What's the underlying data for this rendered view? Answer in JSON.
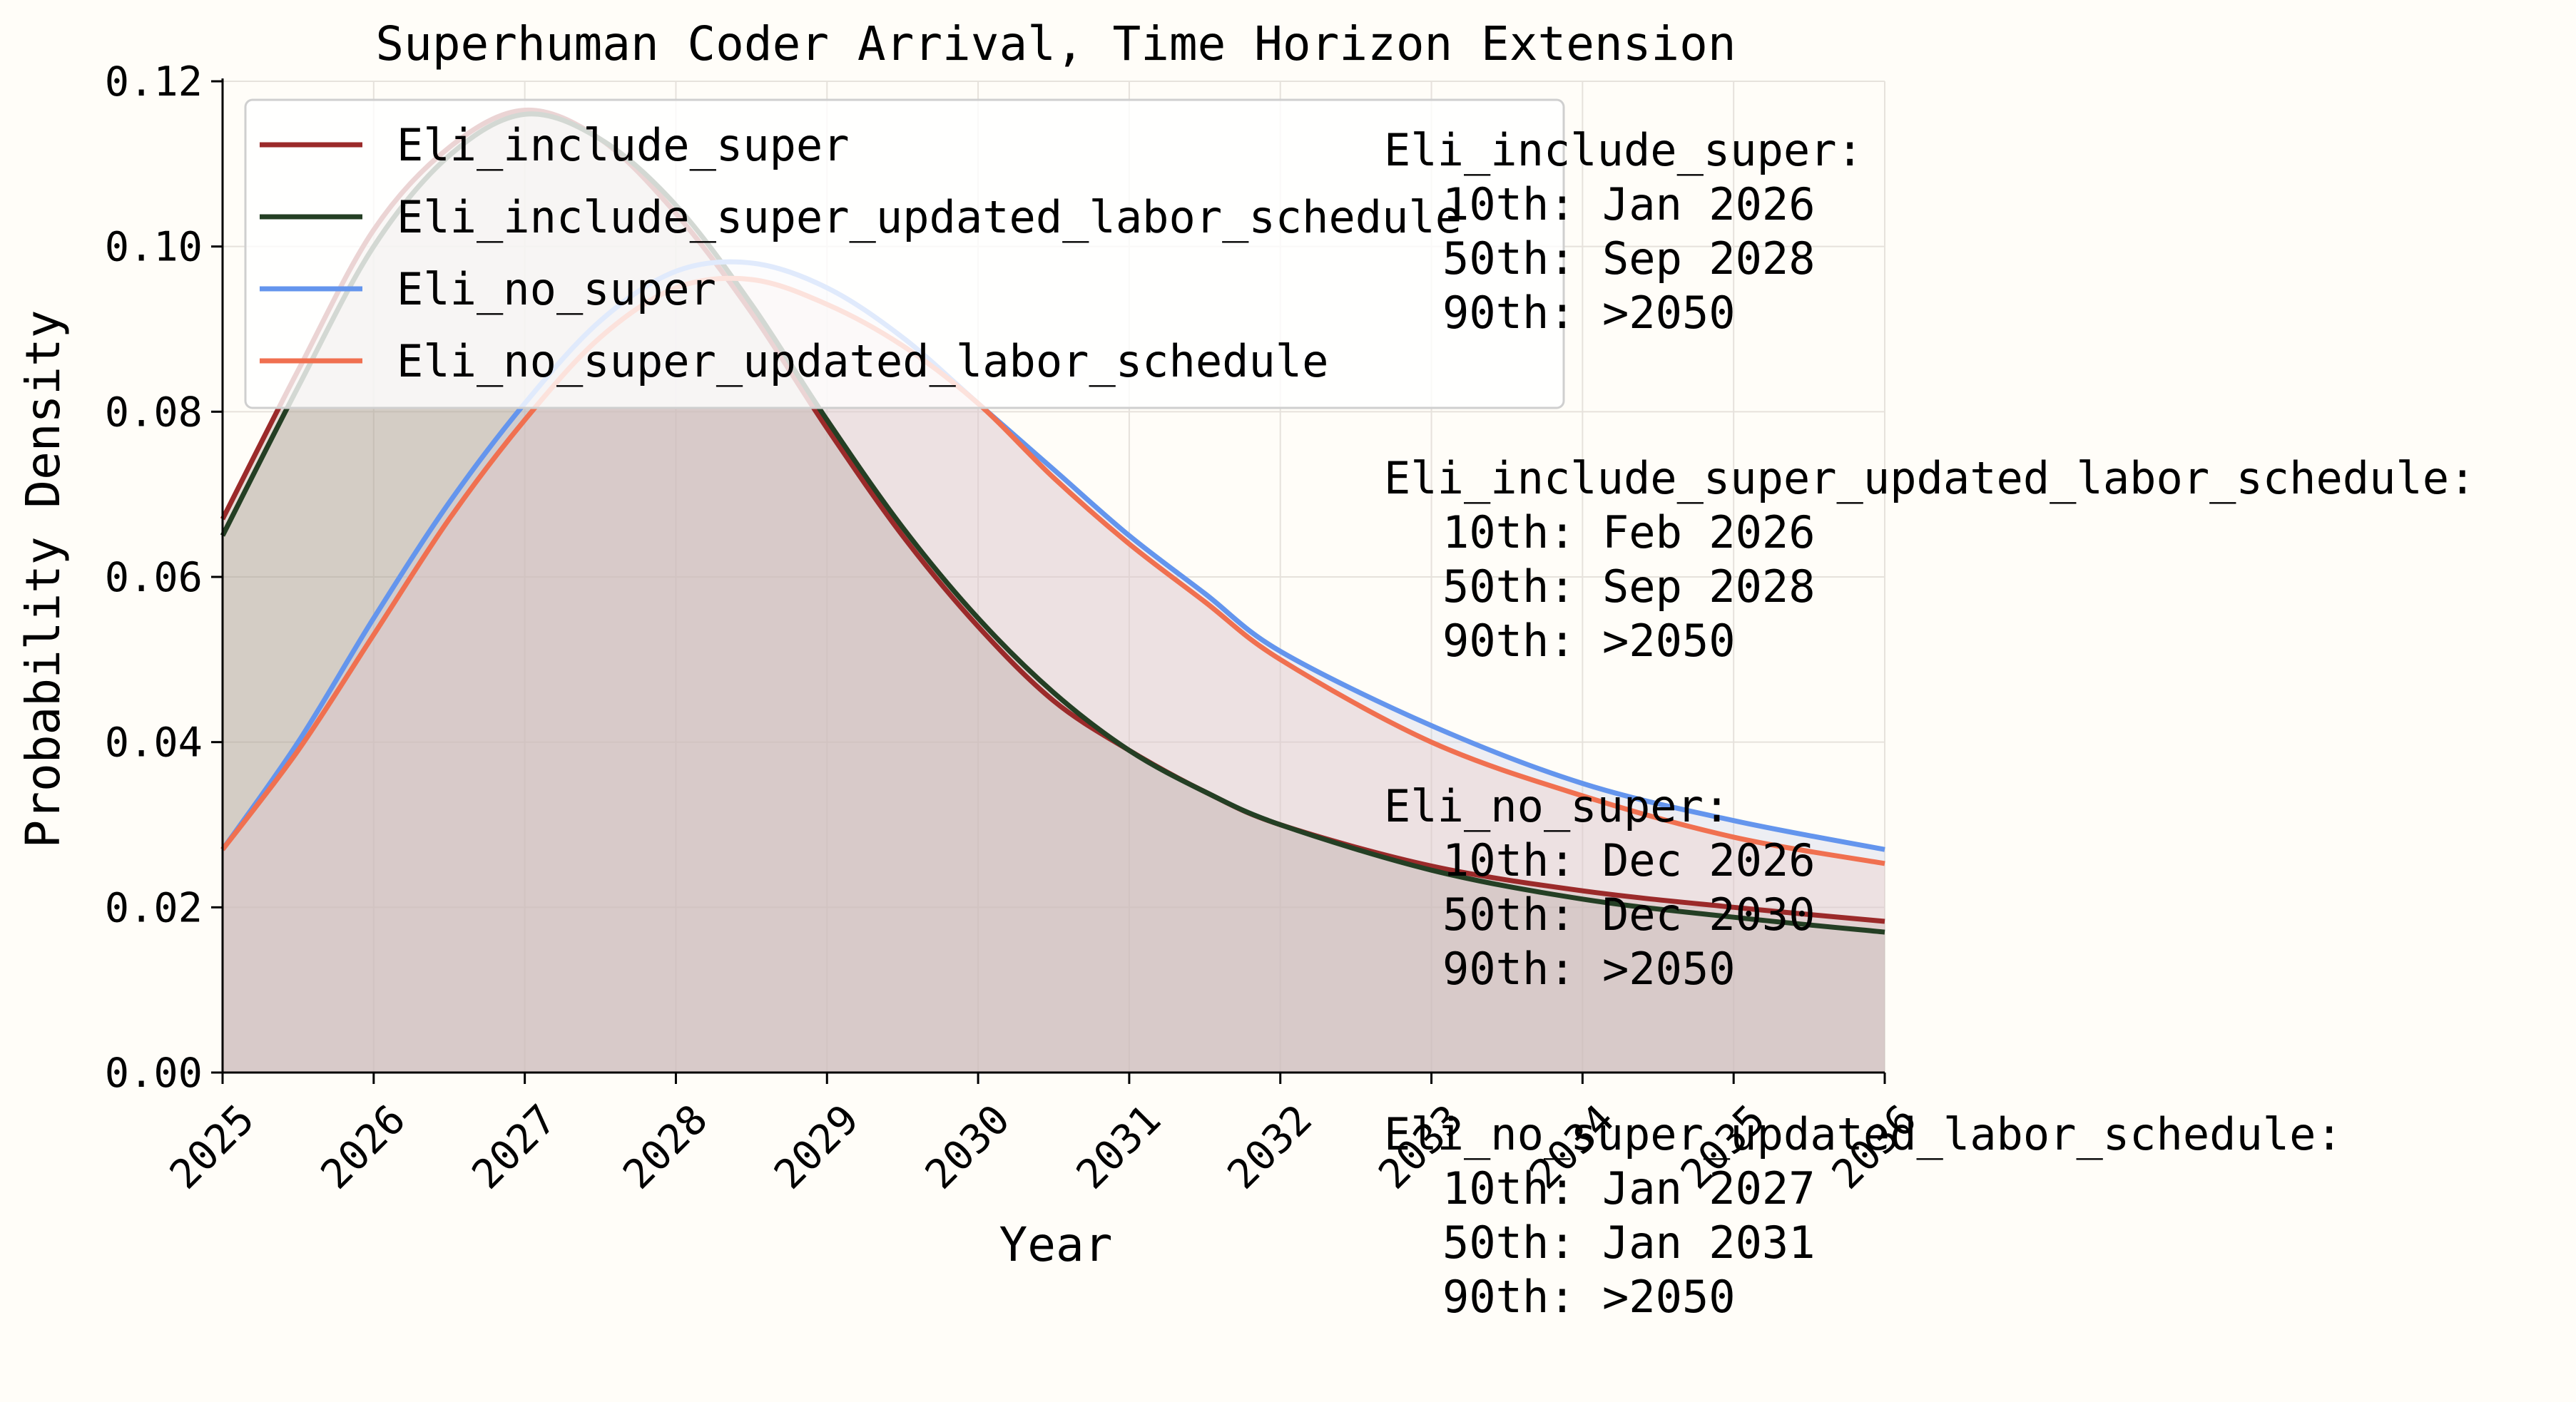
{
  "chart_data": {
    "type": "area",
    "title": "Superhuman Coder Arrival, Time Horizon Extension",
    "xlabel": "Year",
    "ylabel": "Probability Density",
    "xlim": [
      2025,
      2036
    ],
    "ylim": [
      0,
      0.12
    ],
    "x_ticks": [
      2025,
      2026,
      2027,
      2028,
      2029,
      2030,
      2031,
      2032,
      2033,
      2034,
      2035,
      2036
    ],
    "x_tick_labels": [
      "2025",
      "2026",
      "2027",
      "2028",
      "2029",
      "2030",
      "2031",
      "2032",
      "2033",
      "2034",
      "2035",
      "2036"
    ],
    "y_ticks": [
      0,
      0.02,
      0.04,
      0.06,
      0.08,
      0.1,
      0.12
    ],
    "y_tick_labels": [
      "0.00",
      "0.02",
      "0.04",
      "0.06",
      "0.08",
      "0.10",
      "0.12"
    ],
    "grid": true,
    "legend_position": "top-left",
    "series": [
      {
        "name": "Eli_include_super",
        "color": "#9b2a2a",
        "fill": "#b4908a",
        "x": [
          2025,
          2025.5,
          2026,
          2026.5,
          2027,
          2027.5,
          2028,
          2028.5,
          2029,
          2029.5,
          2030,
          2030.5,
          2031,
          2031.5,
          2032,
          2033,
          2034,
          2035,
          2036
        ],
        "y": [
          0.067,
          0.085,
          0.102,
          0.112,
          0.1165,
          0.113,
          0.104,
          0.092,
          0.078,
          0.065,
          0.054,
          0.045,
          0.039,
          0.034,
          0.03,
          0.025,
          0.022,
          0.02,
          0.0183
        ]
      },
      {
        "name": "Eli_include_super_updated_labor_schedule",
        "color": "#243f24",
        "fill": "#a5ac9a",
        "x": [
          2025,
          2025.5,
          2026,
          2026.5,
          2027,
          2027.5,
          2028,
          2028.5,
          2029,
          2029.5,
          2030,
          2030.5,
          2031,
          2031.5,
          2032,
          2033,
          2034,
          2035,
          2036
        ],
        "y": [
          0.065,
          0.083,
          0.1,
          0.111,
          0.116,
          0.113,
          0.105,
          0.093,
          0.079,
          0.066,
          0.055,
          0.046,
          0.039,
          0.034,
          0.03,
          0.0245,
          0.021,
          0.0188,
          0.017
        ]
      },
      {
        "name": "Eli_no_super",
        "color": "#6495ed",
        "fill": "#c2cde8",
        "x": [
          2025,
          2025.5,
          2026,
          2026.5,
          2027,
          2027.5,
          2028,
          2028.5,
          2029,
          2029.5,
          2030,
          2030.5,
          2031,
          2031.5,
          2032,
          2033,
          2034,
          2035,
          2036
        ],
        "y": [
          0.027,
          0.04,
          0.055,
          0.069,
          0.081,
          0.091,
          0.097,
          0.098,
          0.095,
          0.089,
          0.081,
          0.073,
          0.065,
          0.058,
          0.051,
          0.042,
          0.035,
          0.0305,
          0.027
        ]
      },
      {
        "name": "Eli_no_super_updated_labor_schedule",
        "color": "#f07050",
        "fill": "#f0c4bd",
        "x": [
          2025,
          2025.5,
          2026,
          2026.5,
          2027,
          2027.5,
          2028,
          2028.5,
          2029,
          2029.5,
          2030,
          2030.5,
          2031,
          2031.5,
          2032,
          2033,
          2034,
          2035,
          2036
        ],
        "y": [
          0.027,
          0.039,
          0.053,
          0.067,
          0.079,
          0.089,
          0.095,
          0.096,
          0.093,
          0.088,
          0.081,
          0.072,
          0.064,
          0.057,
          0.05,
          0.04,
          0.0335,
          0.0285,
          0.0253
        ]
      }
    ],
    "annotations": [
      {
        "header": "Eli_include_super:",
        "p10": "10th: Jan 2026",
        "p50": "50th: Sep 2028",
        "p90": "90th: >2050"
      },
      {
        "header": "Eli_include_super_updated_labor_schedule:",
        "p10": "10th: Feb 2026",
        "p50": "50th: Sep 2028",
        "p90": "90th: >2050"
      },
      {
        "header": "Eli_no_super:",
        "p10": "10th: Dec 2026",
        "p50": "50th: Dec 2030",
        "p90": "90th: >2050"
      },
      {
        "header": "Eli_no_super_updated_labor_schedule:",
        "p10": "10th: Jan 2027",
        "p50": "50th: Jan 2031",
        "p90": "90th: >2050"
      }
    ]
  }
}
